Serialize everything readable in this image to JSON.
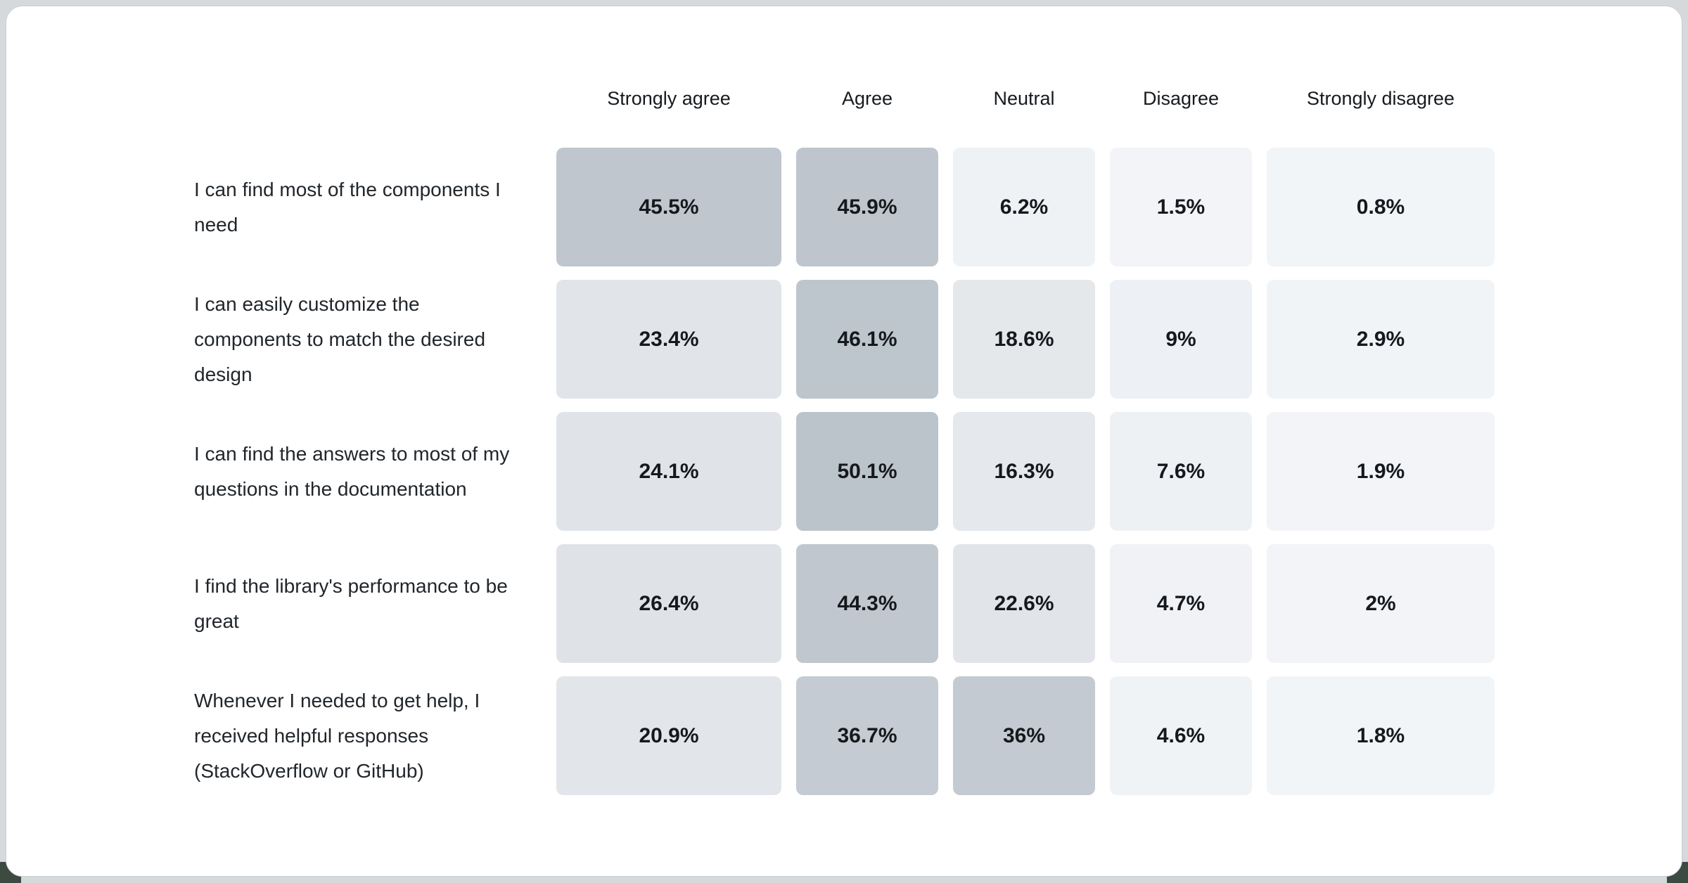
{
  "page": {
    "background_color": "#d5d9dc",
    "card_color": "#ffffff",
    "card_border_color": "#c9ced3",
    "corner_accent_color": "#3d4a41"
  },
  "chart_data": {
    "type": "heatmap",
    "title": "",
    "unit": "percent",
    "grid": "off",
    "legend_position": "none",
    "columns": [
      "Strongly agree",
      "Agree",
      "Neutral",
      "Disagree",
      "Strongly disagree"
    ],
    "rows": [
      {
        "label": "I can find most of the components I need",
        "values": [
          45.5,
          45.9,
          6.2,
          1.5,
          0.8
        ],
        "display": [
          "45.5%",
          "45.9%",
          "6.2%",
          "1.5%",
          "0.8%"
        ],
        "cell_colors": [
          "#bfc6ce",
          "#bec5cd",
          "#eff2f5",
          "#f2f4f7",
          "#f2f5f7"
        ]
      },
      {
        "label": "I can easily customize the components to match the desired design",
        "values": [
          23.4,
          46.1,
          18.6,
          9,
          2.9
        ],
        "display": [
          "23.4%",
          "46.1%",
          "18.6%",
          "9%",
          "2.9%"
        ],
        "cell_colors": [
          "#e1e5e9",
          "#bdc5cd",
          "#e4e8eb",
          "#edf0f4",
          "#f1f4f6"
        ]
      },
      {
        "label": "I can find the answers to most of my questions in the documentation",
        "values": [
          24.1,
          50.1,
          16.3,
          7.6,
          1.9
        ],
        "display": [
          "24.1%",
          "50.1%",
          "16.3%",
          "7.6%",
          "1.9%"
        ],
        "cell_colors": [
          "#e0e4e9",
          "#bbc3cb",
          "#e5e8ec",
          "#eef1f4",
          "#f2f4f7"
        ]
      },
      {
        "label": "I find the library's performance to be great",
        "values": [
          26.4,
          44.3,
          22.6,
          4.7,
          2
        ],
        "display": [
          "26.4%",
          "44.3%",
          "22.6%",
          "4.7%",
          "2%"
        ],
        "cell_colors": [
          "#dfe3e8",
          "#c0c7cf",
          "#e1e5ea",
          "#f0f2f5",
          "#f2f4f7"
        ]
      },
      {
        "label": "Whenever I needed to get help, I received helpful responses (StackOverflow or GitHub)",
        "values": [
          20.9,
          36.7,
          36,
          4.6,
          1.8
        ],
        "display": [
          "20.9%",
          "36.7%",
          "36%",
          "4.6%",
          "1.8%"
        ],
        "cell_colors": [
          "#e2e6ea",
          "#c4cbd2",
          "#c3cad2",
          "#f0f3f5",
          "#f2f5f7"
        ]
      }
    ],
    "text_colors": {
      "header": "#161a1e",
      "row_label": "#21262b",
      "value": "#15191d"
    }
  }
}
